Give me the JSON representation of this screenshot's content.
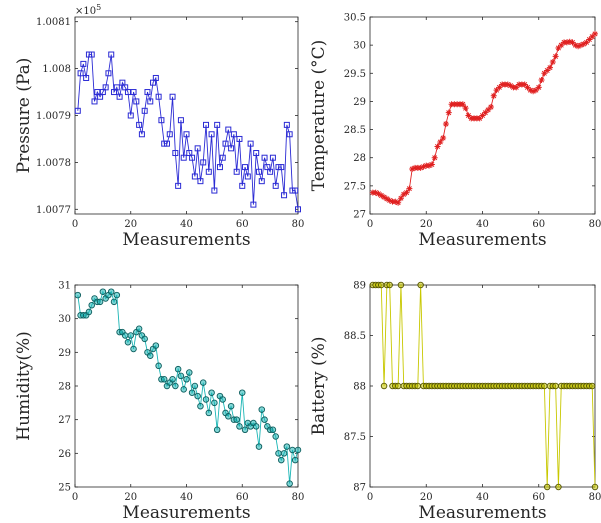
{
  "chart_data": [
    {
      "type": "line",
      "xlabel": "Measurements",
      "ylabel": "Pressure (Pa)",
      "exponent_label": "×10",
      "exponent_power": "5",
      "xlim": [
        0,
        80
      ],
      "ylim": [
        1.00769,
        1.00811
      ],
      "xticks": [
        0,
        20,
        40,
        60,
        80
      ],
      "yticks": [
        1.0077,
        1.0078,
        1.0079,
        1.008,
        1.0081
      ],
      "ytick_labels": [
        "1.0077",
        "1.0078",
        "1.0079",
        "1.008",
        "1.0081"
      ],
      "color": "#2a2ad4",
      "marker": "square",
      "series": [
        {
          "x": [
            1,
            2,
            3,
            4,
            5,
            6,
            7,
            8,
            9,
            10,
            11,
            12,
            13,
            14,
            15,
            16,
            17,
            18,
            19,
            20,
            21,
            22,
            23,
            24,
            25,
            26,
            27,
            28,
            29,
            30,
            31,
            32,
            33,
            34,
            35,
            36,
            37,
            38,
            39,
            40,
            41,
            42,
            43,
            44,
            45,
            46,
            47,
            48,
            49,
            50,
            51,
            52,
            53,
            54,
            55,
            56,
            57,
            58,
            59,
            60,
            61,
            62,
            63,
            64,
            65,
            66,
            67,
            68,
            69,
            70,
            71,
            72,
            73,
            74,
            75,
            76,
            77,
            78,
            79,
            80
          ],
          "y": [
            1.00791,
            1.00799,
            1.00801,
            1.00798,
            1.00803,
            1.00803,
            1.00793,
            1.00795,
            1.00794,
            1.00795,
            1.00796,
            1.00799,
            1.00803,
            1.00795,
            1.00796,
            1.00794,
            1.00797,
            1.00796,
            1.00795,
            1.0079,
            1.00795,
            1.00793,
            1.00788,
            1.00786,
            1.00791,
            1.00795,
            1.00793,
            1.00797,
            1.00798,
            1.00794,
            1.00789,
            1.00784,
            1.00784,
            1.00786,
            1.00794,
            1.00782,
            1.00775,
            1.00789,
            1.00781,
            1.00786,
            1.00782,
            1.00781,
            1.00777,
            1.00783,
            1.00776,
            1.0078,
            1.00788,
            1.00778,
            1.00786,
            1.00774,
            1.00788,
            1.00779,
            1.00781,
            1.00784,
            1.00787,
            1.00783,
            1.00786,
            1.00778,
            1.00785,
            1.00775,
            1.00779,
            1.00777,
            1.00784,
            1.00771,
            1.00782,
            1.00778,
            1.00776,
            1.00781,
            1.00779,
            1.00778,
            1.00781,
            1.00775,
            1.00779,
            1.00779,
            1.00773,
            1.00788,
            1.00786,
            1.00774,
            1.00774,
            1.0077
          ]
        }
      ]
    },
    {
      "type": "line",
      "xlabel": "Measurements",
      "ylabel": "Temperature (°C)",
      "xlim": [
        0,
        80
      ],
      "ylim": [
        27,
        30.5
      ],
      "xticks": [
        0,
        20,
        40,
        60,
        80
      ],
      "yticks": [
        27,
        27.5,
        28,
        28.5,
        29,
        29.5,
        30,
        30.5
      ],
      "ytick_labels": [
        "27",
        "27.5",
        "28",
        "28.5",
        "29",
        "29.5",
        "30",
        "30.5"
      ],
      "color": "#e02020",
      "marker": "star",
      "series": [
        {
          "x": [
            1,
            2,
            3,
            4,
            5,
            6,
            7,
            8,
            9,
            10,
            11,
            12,
            13,
            14,
            15,
            16,
            17,
            18,
            19,
            20,
            21,
            22,
            23,
            24,
            25,
            26,
            27,
            28,
            29,
            30,
            31,
            32,
            33,
            34,
            35,
            36,
            37,
            38,
            39,
            40,
            41,
            42,
            43,
            44,
            45,
            46,
            47,
            48,
            49,
            50,
            51,
            52,
            53,
            54,
            55,
            56,
            57,
            58,
            59,
            60,
            61,
            62,
            63,
            64,
            65,
            66,
            67,
            68,
            69,
            70,
            71,
            72,
            73,
            74,
            75,
            76,
            77,
            78,
            79,
            80
          ],
          "y": [
            27.38,
            27.38,
            27.36,
            27.33,
            27.3,
            27.27,
            27.24,
            27.22,
            27.22,
            27.2,
            27.28,
            27.35,
            27.38,
            27.45,
            27.8,
            27.82,
            27.82,
            27.82,
            27.84,
            27.86,
            27.86,
            27.88,
            28.0,
            28.2,
            28.28,
            28.35,
            28.6,
            28.8,
            28.95,
            28.95,
            28.95,
            28.95,
            28.95,
            28.88,
            28.75,
            28.7,
            28.7,
            28.7,
            28.7,
            28.75,
            28.8,
            28.85,
            28.9,
            29.1,
            29.2,
            29.25,
            29.3,
            29.3,
            29.3,
            29.28,
            29.25,
            29.25,
            29.3,
            29.3,
            29.3,
            29.25,
            29.2,
            29.18,
            29.2,
            29.25,
            29.38,
            29.5,
            29.55,
            29.6,
            29.7,
            29.8,
            29.95,
            30.0,
            30.05,
            30.05,
            30.06,
            30.05,
            30.0,
            29.98,
            30.0,
            30.02,
            30.05,
            30.1,
            30.15,
            30.2
          ]
        }
      ]
    },
    {
      "type": "line",
      "xlabel": "Measurements",
      "ylabel": "Humidity(%)",
      "xlim": [
        0,
        80
      ],
      "ylim": [
        25,
        31
      ],
      "xticks": [
        0,
        20,
        40,
        60,
        80
      ],
      "yticks": [
        25,
        26,
        27,
        28,
        29,
        30,
        31
      ],
      "ytick_labels": [
        "25",
        "26",
        "27",
        "28",
        "29",
        "30",
        "31"
      ],
      "color": "#1ab5b5",
      "marker": "circle",
      "series": [
        {
          "x": [
            1,
            2,
            3,
            4,
            5,
            6,
            7,
            8,
            9,
            10,
            11,
            12,
            13,
            14,
            15,
            16,
            17,
            18,
            19,
            20,
            21,
            22,
            23,
            24,
            25,
            26,
            27,
            28,
            29,
            30,
            31,
            32,
            33,
            34,
            35,
            36,
            37,
            38,
            39,
            40,
            41,
            42,
            43,
            44,
            45,
            46,
            47,
            48,
            49,
            50,
            51,
            52,
            53,
            54,
            55,
            56,
            57,
            58,
            59,
            60,
            61,
            62,
            63,
            64,
            65,
            66,
            67,
            68,
            69,
            70,
            71,
            72,
            73,
            74,
            75,
            76,
            77,
            78,
            79,
            80
          ],
          "y": [
            30.7,
            30.1,
            30.1,
            30.1,
            30.2,
            30.4,
            30.6,
            30.5,
            30.5,
            30.8,
            30.6,
            30.7,
            30.8,
            30.5,
            30.7,
            29.6,
            29.6,
            29.5,
            29.3,
            29.5,
            29.1,
            29.6,
            29.7,
            29.5,
            29.4,
            29.0,
            28.9,
            29.1,
            29.2,
            28.6,
            28.2,
            28.2,
            28.0,
            28.1,
            28.2,
            28.0,
            28.5,
            28.3,
            27.9,
            28.2,
            28.4,
            27.8,
            28.0,
            27.7,
            27.4,
            28.1,
            27.6,
            27.2,
            27.8,
            27.5,
            26.7,
            27.7,
            27.6,
            27.2,
            27.1,
            27.4,
            27.0,
            27.0,
            26.8,
            27.8,
            26.7,
            26.9,
            26.8,
            26.9,
            26.8,
            26.2,
            27.3,
            27.0,
            26.8,
            26.7,
            26.7,
            26.5,
            26.0,
            25.8,
            26.0,
            26.2,
            25.1,
            26.1,
            25.8,
            26.1
          ]
        }
      ]
    },
    {
      "type": "line",
      "xlabel": "Measurements",
      "ylabel": "Battery (%)",
      "xlim": [
        0,
        80
      ],
      "ylim": [
        87,
        89
      ],
      "xticks": [
        0,
        20,
        40,
        60,
        80
      ],
      "yticks": [
        87,
        87.5,
        88,
        88.5,
        89
      ],
      "ytick_labels": [
        "87",
        "87.5",
        "88",
        "88.5",
        "89"
      ],
      "color": "#c8c800",
      "marker": "circle",
      "series": [
        {
          "x": [
            1,
            2,
            3,
            4,
            5,
            6,
            7,
            8,
            9,
            10,
            11,
            12,
            13,
            14,
            15,
            16,
            17,
            18,
            19,
            20,
            21,
            22,
            23,
            24,
            25,
            26,
            27,
            28,
            29,
            30,
            31,
            32,
            33,
            34,
            35,
            36,
            37,
            38,
            39,
            40,
            41,
            42,
            43,
            44,
            45,
            46,
            47,
            48,
            49,
            50,
            51,
            52,
            53,
            54,
            55,
            56,
            57,
            58,
            59,
            60,
            61,
            62,
            63,
            64,
            65,
            66,
            67,
            68,
            69,
            70,
            71,
            72,
            73,
            74,
            75,
            76,
            77,
            78,
            79,
            80
          ],
          "y": [
            89,
            89,
            89,
            89,
            88,
            89,
            89,
            88,
            88,
            88,
            89,
            88,
            88,
            88,
            88,
            88,
            88,
            89,
            88,
            88,
            88,
            88,
            88,
            88,
            88,
            88,
            88,
            88,
            88,
            88,
            88,
            88,
            88,
            88,
            88,
            88,
            88,
            88,
            88,
            88,
            88,
            88,
            88,
            88,
            88,
            88,
            88,
            88,
            88,
            88,
            88,
            88,
            88,
            88,
            88,
            88,
            88,
            88,
            88,
            88,
            88,
            88,
            87,
            88,
            88,
            88,
            87,
            88,
            88,
            88,
            88,
            88,
            88,
            88,
            88,
            88,
            88,
            88,
            88,
            87
          ]
        }
      ]
    }
  ]
}
